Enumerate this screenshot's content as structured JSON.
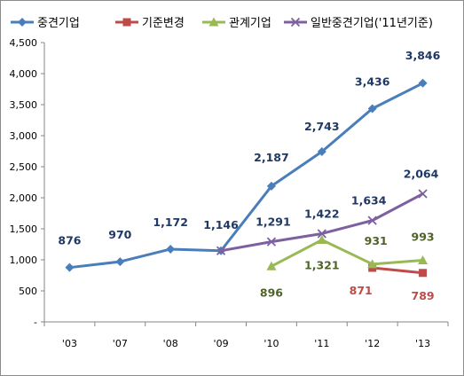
{
  "chart_data": {
    "type": "line",
    "categories": [
      "'03",
      "'07",
      "'08",
      "'09",
      "'10",
      "'11",
      "'12",
      "'13"
    ],
    "ylim": [
      0,
      4500
    ],
    "yticks": [
      "-",
      "500",
      "1,000",
      "1,500",
      "2,000",
      "2,500",
      "3,000",
      "3,500",
      "4,000",
      "4,500"
    ],
    "ytick_values": [
      0,
      500,
      1000,
      1500,
      2000,
      2500,
      3000,
      3500,
      4000,
      4500
    ],
    "grid": false,
    "legend_position": "top",
    "series": [
      {
        "name": "중견기업",
        "color": "#4a7ebb",
        "marker": "diamond",
        "values": [
          876,
          970,
          1172,
          1146,
          2187,
          2743,
          3436,
          3846
        ],
        "labels": [
          "876",
          "970",
          "1,172",
          "1,146",
          "2,187",
          "2,743",
          "3,436",
          "3,846"
        ],
        "label_color": "#1f3864"
      },
      {
        "name": "기준변경",
        "color": "#be4b48",
        "marker": "square",
        "values": [
          null,
          null,
          null,
          null,
          null,
          null,
          871,
          789
        ],
        "labels": [
          null,
          null,
          null,
          null,
          null,
          null,
          "871",
          "789"
        ],
        "label_color": "#be4b48"
      },
      {
        "name": "관계기업",
        "color": "#98b954",
        "marker": "triangle",
        "values": [
          null,
          null,
          null,
          null,
          896,
          1321,
          931,
          993
        ],
        "labels": [
          null,
          null,
          null,
          null,
          "896",
          "1,321",
          "931",
          "993"
        ],
        "label_color": "#4f6228"
      },
      {
        "name": "일반중견기업('11년기준)",
        "color": "#7d60a0",
        "marker": "x",
        "values": [
          null,
          null,
          null,
          1146,
          1291,
          1422,
          1634,
          2064
        ],
        "labels": [
          null,
          null,
          null,
          null,
          "1,291",
          "1,422",
          "1,634",
          "2,064"
        ],
        "label_color": "#1f3864"
      }
    ]
  }
}
